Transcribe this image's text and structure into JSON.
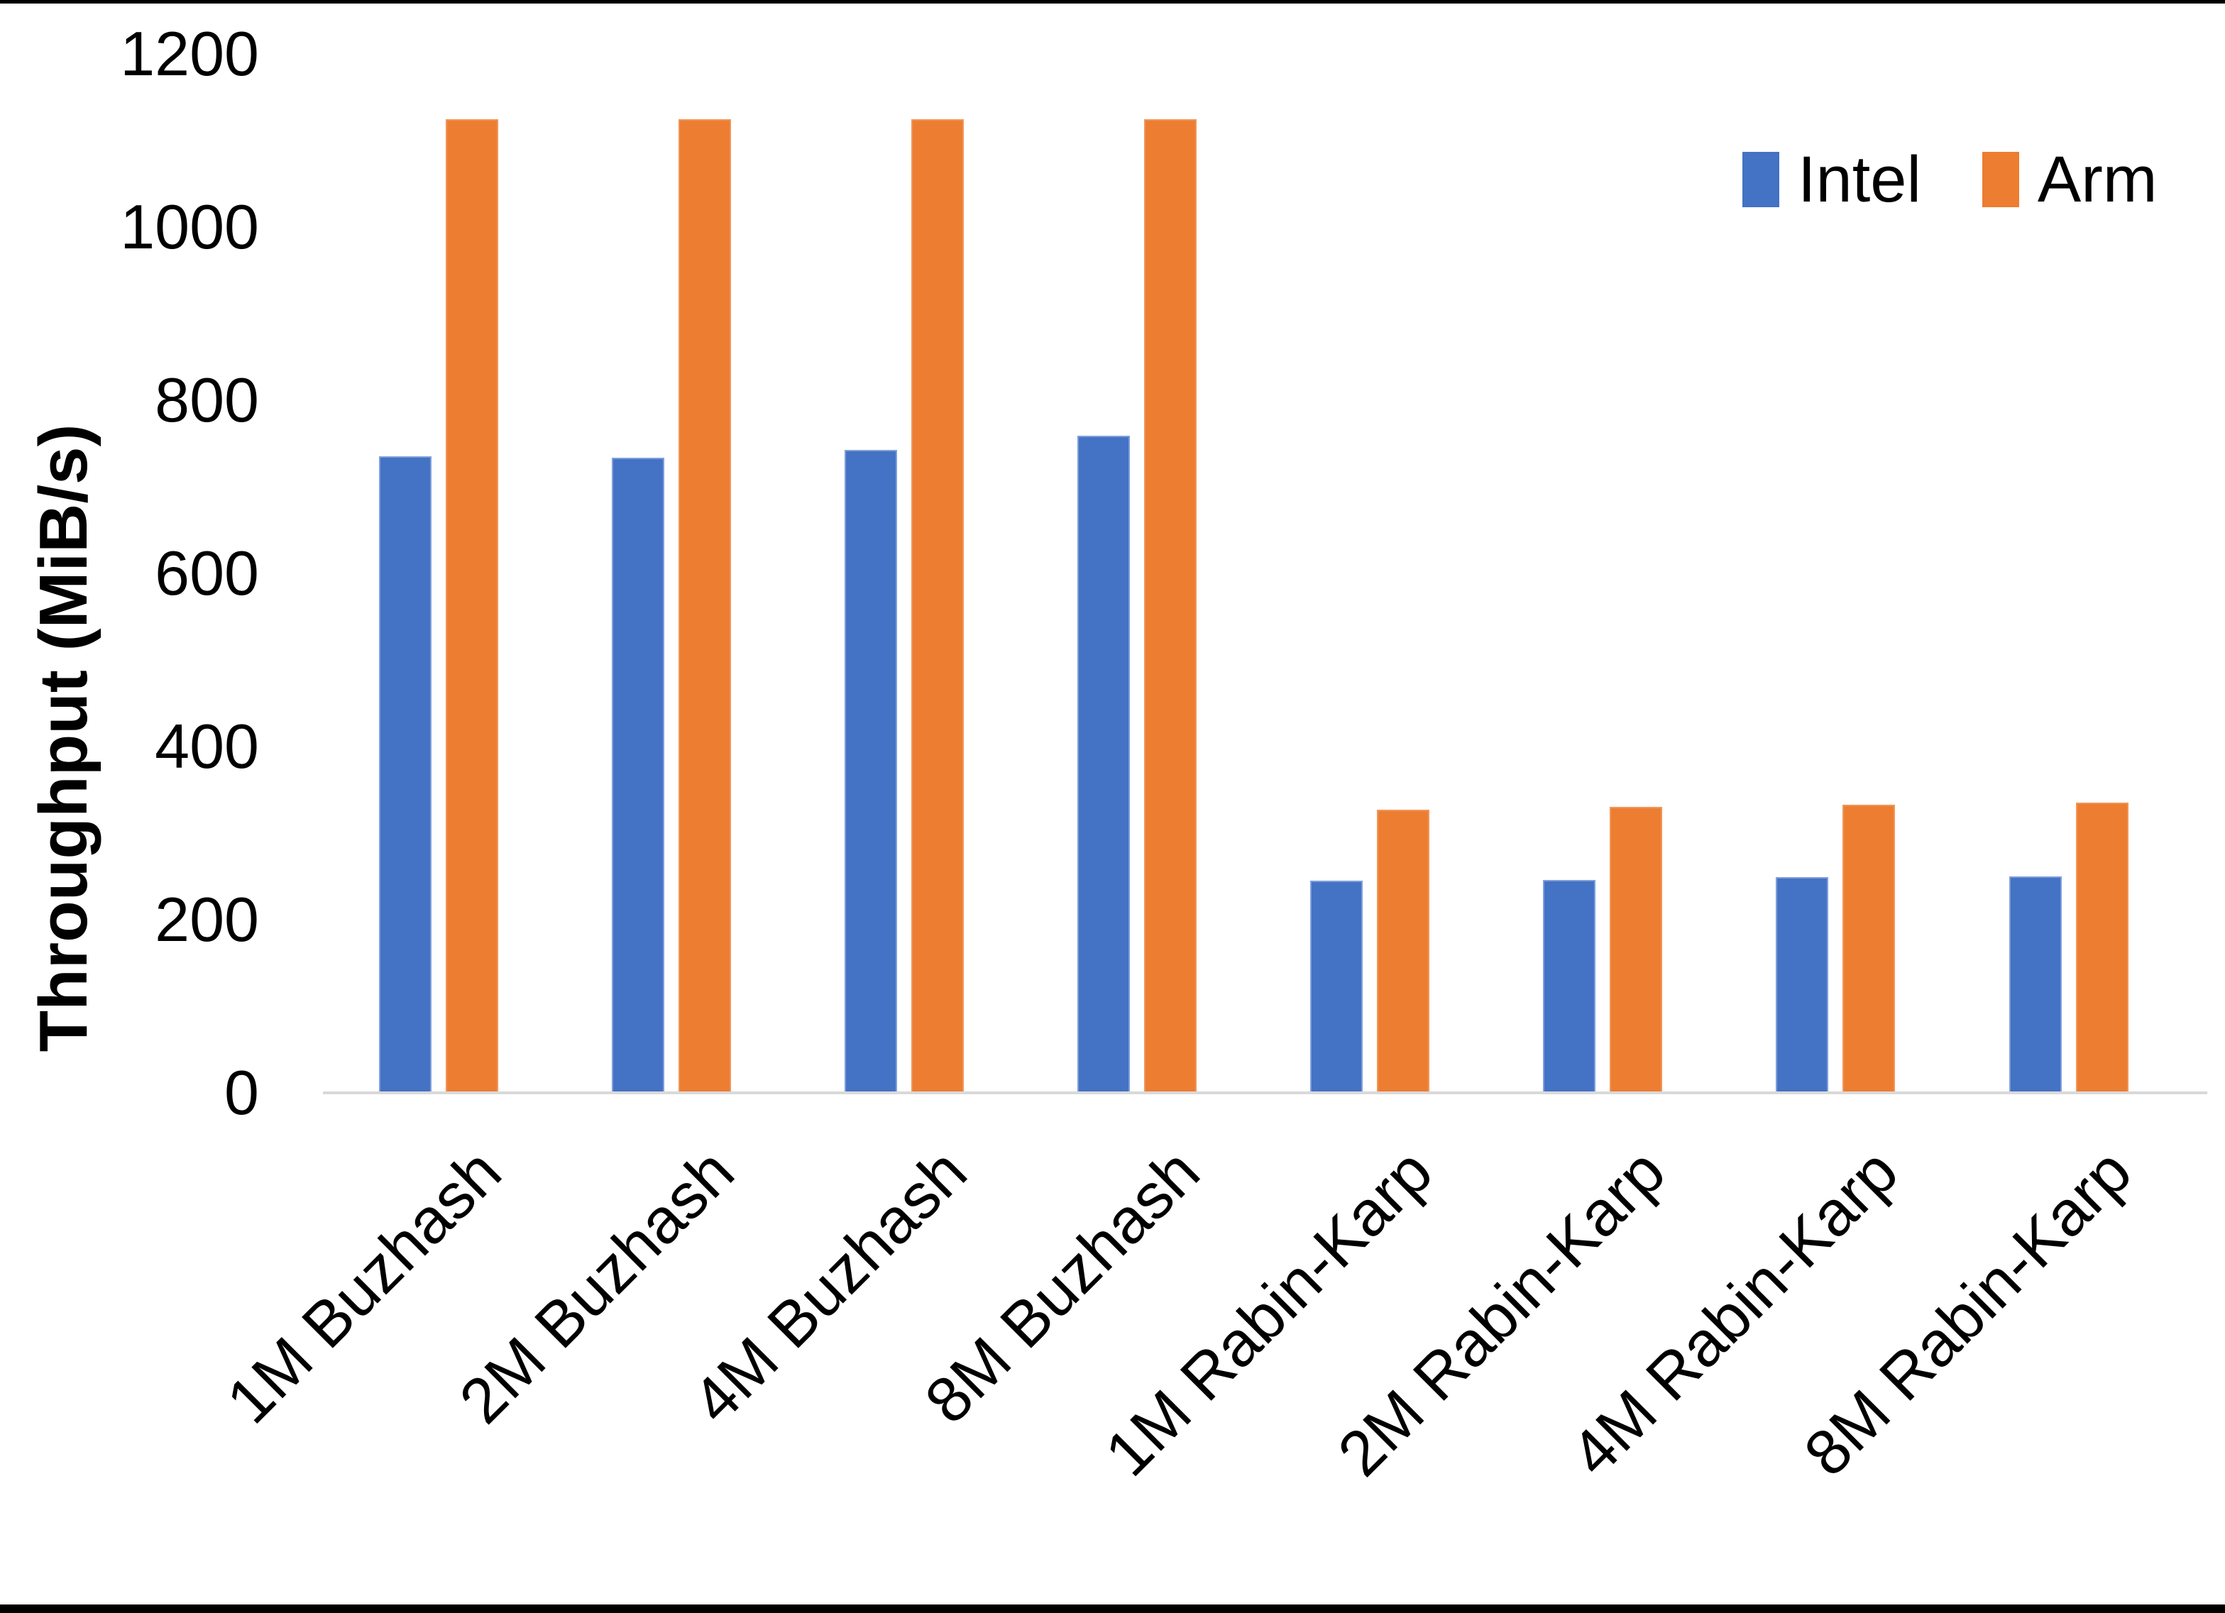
{
  "chart_data": {
    "type": "bar",
    "title": "",
    "xlabel": "",
    "ylabel": "Throughput (MiB/s)",
    "categories": [
      "1M Buzhash",
      "2M Buzhash",
      "4M Buzhash",
      "8M Buzhash",
      "1M Rabin-Karp",
      "2M Rabin-Karp",
      "4M Rabin-Karp",
      "8M Rabin-Karp"
    ],
    "series": [
      {
        "name": "Intel",
        "color": "#4472C4",
        "values": [
          735,
          734,
          743,
          759,
          245,
          246,
          249,
          250
        ]
      },
      {
        "name": "Arm",
        "color": "#ED7D31",
        "values": [
          1125,
          1125,
          1125,
          1125,
          327,
          330,
          333,
          335
        ]
      }
    ],
    "ylim": [
      0,
      1200
    ],
    "yticks": [
      0,
      200,
      400,
      600,
      800,
      1000,
      1200
    ],
    "grid": false,
    "legend_position": "top-right"
  },
  "colors": {
    "intel": "#4472C4",
    "arm": "#ED7D31",
    "axis_line": "#D9D9D9",
    "text": "#000000",
    "background": "#FFFFFF",
    "page_border": "#000000"
  }
}
